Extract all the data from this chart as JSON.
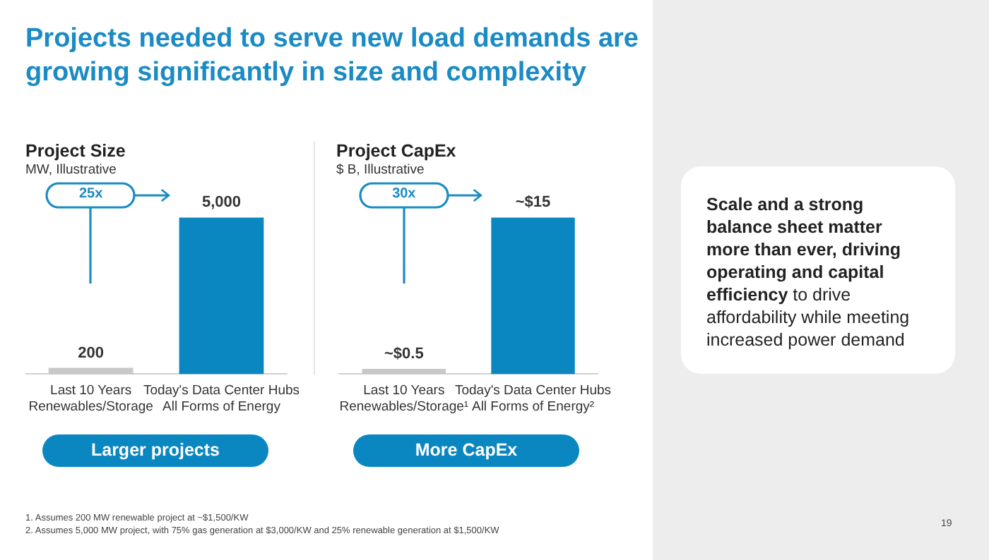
{
  "chart_data": [
    {
      "type": "other",
      "title": "Projects needed to serve new load demands are growing significantly in size and complexity"
    },
    {
      "type": "bar",
      "title": "Project Size",
      "subtitle": "MW, Illustrative",
      "categories": [
        "Last 10 Years\nRenewables/Storage",
        "Today's Data Center Hubs\nAll Forms of Energy"
      ],
      "values": [
        200,
        5000
      ],
      "colors": [
        "#c8c8c8",
        "#0a87c0"
      ],
      "value_labels": [
        "200",
        "5,000"
      ],
      "annotations": [
        "25x",
        "Larger projects"
      ]
    },
    {
      "type": "bar",
      "title": "Project CapEx",
      "subtitle": "$ B, Illustrative",
      "categories": [
        "Last 10 Years\nRenewables/Storage¹",
        "Today's Data Center Hubs\nAll Forms of Energy²"
      ],
      "values": [
        0.5,
        15
      ],
      "colors": [
        "#c8c8c8",
        "#0a87c0"
      ],
      "value_labels": [
        "~$0.5",
        "~$15"
      ],
      "annotations": [
        "30x",
        "More CapEx"
      ]
    },
    {
      "type": "other",
      "annotations": [
        "Scale and a strong balance sheet matter more than ever, driving operating and capital efficiency",
        "to drive affordability while meeting increased power demand"
      ]
    },
    {
      "type": "other",
      "annotations": [
        "1.  Assumes 200 MW renewable project at ~$1,500/KW",
        "2.  Assumes 5,000 MW project, with 75% gas generation at $3,000/KW and 25% renewable generation at $1,500/KW",
        "19"
      ]
    }
  ]
}
